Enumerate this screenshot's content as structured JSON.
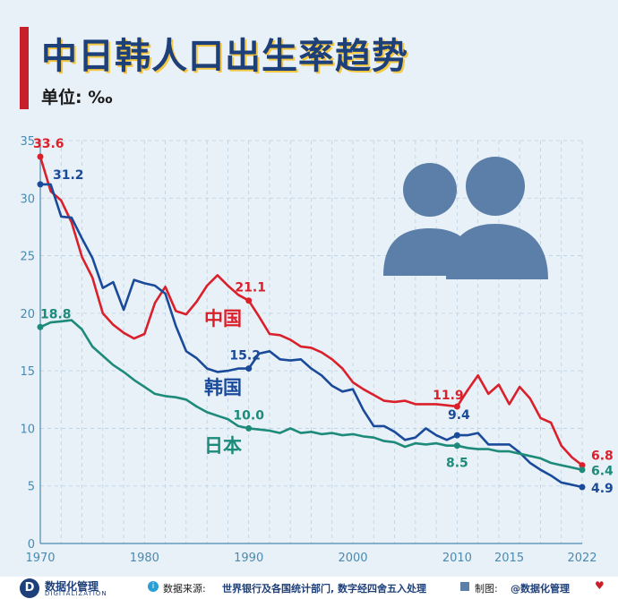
{
  "header": {
    "title": "中日韩人口出生率趋势",
    "unit": "单位: ‰"
  },
  "colors": {
    "china": "#d9202b",
    "korea": "#1a4a9a",
    "japan": "#1d8a7a",
    "axis": "#4a8ab0",
    "grid": "#b9d0e2",
    "icon": "#5b7fa8"
  },
  "icons": {
    "people": "two-people-icon"
  },
  "chart_data": {
    "type": "line",
    "title": "中日韩人口出生率趋势",
    "ylabel": "单位: ‰",
    "xlim": [
      1970,
      2022
    ],
    "ylim": [
      0,
      35
    ],
    "xticks": [
      1970,
      1980,
      1990,
      2000,
      2010,
      2015,
      2022
    ],
    "yticks": [
      0,
      5,
      10,
      15,
      20,
      25,
      30,
      35
    ],
    "grid": true,
    "series": [
      {
        "name": "中国",
        "key": "china",
        "x": [
          1970,
          1971,
          1972,
          1973,
          1974,
          1975,
          1976,
          1977,
          1978,
          1979,
          1980,
          1981,
          1982,
          1983,
          1984,
          1985,
          1986,
          1987,
          1988,
          1989,
          1990,
          1991,
          1992,
          1993,
          1994,
          1995,
          1996,
          1997,
          1998,
          1999,
          2000,
          2001,
          2002,
          2003,
          2004,
          2005,
          2006,
          2007,
          2008,
          2009,
          2010,
          2011,
          2012,
          2013,
          2014,
          2015,
          2016,
          2017,
          2018,
          2019,
          2020,
          2021,
          2022
        ],
        "y": [
          33.6,
          30.6,
          29.8,
          27.9,
          24.9,
          23.1,
          20.0,
          19.0,
          18.3,
          17.8,
          18.2,
          20.9,
          22.3,
          20.2,
          19.9,
          21.0,
          22.4,
          23.3,
          22.4,
          21.6,
          21.1,
          19.7,
          18.2,
          18.1,
          17.7,
          17.1,
          17.0,
          16.6,
          16.0,
          15.2,
          14.0,
          13.4,
          12.9,
          12.4,
          12.3,
          12.4,
          12.1,
          12.1,
          12.1,
          12.0,
          11.9,
          13.3,
          14.6,
          13.0,
          13.8,
          12.1,
          13.6,
          12.6,
          10.9,
          10.5,
          8.5,
          7.5,
          6.8
        ],
        "labels": [
          {
            "x": 1970,
            "y": 33.6,
            "text": "33.6"
          },
          {
            "x": 1990,
            "y": 21.1,
            "text": "21.1"
          },
          {
            "x": 2010,
            "y": 11.9,
            "text": "11.9"
          },
          {
            "x": 2022,
            "y": 6.8,
            "text": "6.8"
          }
        ]
      },
      {
        "name": "韩国",
        "key": "korea",
        "x": [
          1970,
          1971,
          1972,
          1973,
          1974,
          1975,
          1976,
          1977,
          1978,
          1979,
          1980,
          1981,
          1982,
          1983,
          1984,
          1985,
          1986,
          1987,
          1988,
          1989,
          1990,
          1991,
          1992,
          1993,
          1994,
          1995,
          1996,
          1997,
          1998,
          1999,
          2000,
          2001,
          2002,
          2003,
          2004,
          2005,
          2006,
          2007,
          2008,
          2009,
          2010,
          2011,
          2012,
          2013,
          2014,
          2015,
          2016,
          2017,
          2018,
          2019,
          2020,
          2021,
          2022
        ],
        "y": [
          31.2,
          31.2,
          28.4,
          28.3,
          26.5,
          24.8,
          22.2,
          22.7,
          20.3,
          22.9,
          22.6,
          22.4,
          21.7,
          18.9,
          16.7,
          16.1,
          15.2,
          14.9,
          15.0,
          15.2,
          15.2,
          16.5,
          16.7,
          16.0,
          15.9,
          16.0,
          15.2,
          14.6,
          13.7,
          13.2,
          13.4,
          11.6,
          10.2,
          10.2,
          9.7,
          9.0,
          9.2,
          10.0,
          9.4,
          9.0,
          9.4,
          9.4,
          9.6,
          8.6,
          8.6,
          8.6,
          7.9,
          7.0,
          6.4,
          5.9,
          5.3,
          5.1,
          4.9
        ],
        "labels": [
          {
            "x": 1970,
            "y": 31.2,
            "text": "31.2"
          },
          {
            "x": 1990,
            "y": 15.2,
            "text": "15.2"
          },
          {
            "x": 2010,
            "y": 9.4,
            "text": "9.4"
          },
          {
            "x": 2022,
            "y": 4.9,
            "text": "4.9"
          }
        ]
      },
      {
        "name": "日本",
        "key": "japan",
        "x": [
          1970,
          1971,
          1972,
          1973,
          1974,
          1975,
          1976,
          1977,
          1978,
          1979,
          1980,
          1981,
          1982,
          1983,
          1984,
          1985,
          1986,
          1987,
          1988,
          1989,
          1990,
          1991,
          1992,
          1993,
          1994,
          1995,
          1996,
          1997,
          1998,
          1999,
          2000,
          2001,
          2002,
          2003,
          2004,
          2005,
          2006,
          2007,
          2008,
          2009,
          2010,
          2011,
          2012,
          2013,
          2014,
          2015,
          2016,
          2017,
          2018,
          2019,
          2020,
          2021,
          2022
        ],
        "y": [
          18.8,
          19.2,
          19.3,
          19.4,
          18.6,
          17.1,
          16.3,
          15.5,
          14.9,
          14.2,
          13.6,
          13.0,
          12.8,
          12.7,
          12.5,
          11.9,
          11.4,
          11.1,
          10.8,
          10.2,
          10.0,
          9.9,
          9.8,
          9.6,
          10.0,
          9.6,
          9.7,
          9.5,
          9.6,
          9.4,
          9.5,
          9.3,
          9.2,
          8.9,
          8.8,
          8.4,
          8.7,
          8.6,
          8.7,
          8.5,
          8.5,
          8.3,
          8.2,
          8.2,
          8.0,
          8.0,
          7.8,
          7.6,
          7.4,
          7.0,
          6.8,
          6.6,
          6.4
        ],
        "labels": [
          {
            "x": 1970,
            "y": 18.8,
            "text": "18.8"
          },
          {
            "x": 1990,
            "y": 10.0,
            "text": "10.0"
          },
          {
            "x": 2010,
            "y": 8.5,
            "text": "8.5"
          },
          {
            "x": 2022,
            "y": 6.4,
            "text": "6.4"
          }
        ]
      }
    ]
  },
  "footer": {
    "logo_glyph": "D",
    "brand": "数据化管理",
    "brand_en": "DIGITALIZATION",
    "source_label": "数据来源:",
    "source_text": "世界银行及各国统计部门, 数字经四舍五入处理",
    "made_label": "制图:",
    "made_text": "@数据化管理"
  }
}
